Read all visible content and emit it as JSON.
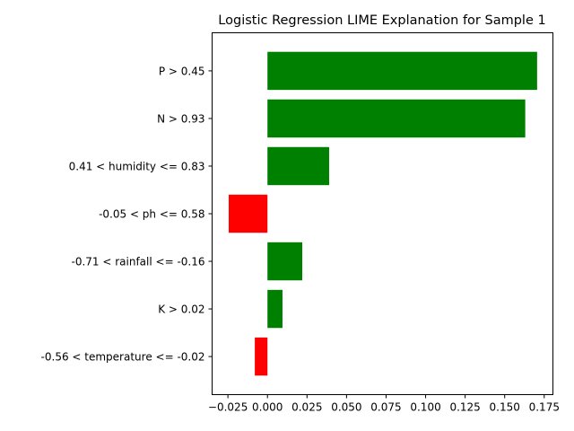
{
  "chart_data": {
    "type": "bar",
    "orientation": "horizontal",
    "title": "Logistic Regression LIME Explanation for Sample 1",
    "xlabel": "",
    "ylabel": "",
    "categories": [
      "P > 0.45",
      "N > 0.93",
      "0.41 < humidity <= 0.83",
      "-0.05 < ph <= 0.58",
      "-0.71 < rainfall <= -0.16",
      "K > 0.02",
      "-0.56 < temperature <= -0.02"
    ],
    "values": [
      0.1705,
      0.163,
      0.039,
      -0.0245,
      0.022,
      0.0095,
      -0.008
    ],
    "xlim": [
      -0.035,
      0.1805
    ],
    "xticks": [
      -0.025,
      0.0,
      0.025,
      0.05,
      0.075,
      0.1,
      0.125,
      0.15,
      0.175
    ],
    "xtick_labels": [
      "−0.025",
      "0.000",
      "0.025",
      "0.050",
      "0.075",
      "0.100",
      "0.125",
      "0.150",
      "0.175"
    ],
    "grid": false,
    "legend": "none",
    "colors": {
      "positive": "#008000",
      "negative": "#ff0000"
    }
  }
}
